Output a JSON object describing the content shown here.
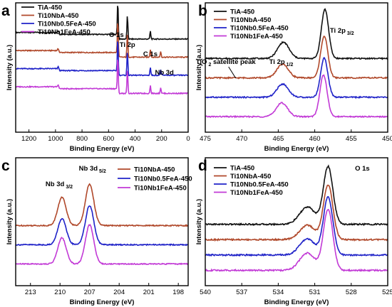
{
  "colors": {
    "TiA-450": "#111111",
    "Ti10NbA-450": "#b0482a",
    "Ti10Nb0.5FeA-450": "#1f22c8",
    "Ti10Nb1FeA-450": "#c23ad6"
  },
  "chart_data": [
    {
      "type": "line",
      "panel": "a",
      "xlabel": "Binding Energy (eV)",
      "ylabel": "Intensity (a.u.)",
      "xlim": [
        1300,
        0
      ],
      "x_reversed": true,
      "xticks": [
        1200,
        1000,
        800,
        600,
        400,
        200,
        0
      ],
      "legend_position": "top-left",
      "series": [
        {
          "name": "TiA-450",
          "offset": 3,
          "spikes": [
            [
              978,
              0.1
            ],
            [
              530,
              0.9
            ],
            [
              458,
              0.6
            ],
            [
              285,
              0.2
            ]
          ]
        },
        {
          "name": "Ti10NbA-450",
          "offset": 2,
          "spikes": [
            [
              978,
              0.1
            ],
            [
              530,
              0.9
            ],
            [
              458,
              0.6
            ],
            [
              285,
              0.2
            ],
            [
              207,
              0.15
            ]
          ]
        },
        {
          "name": "Ti10Nb0.5FeA-450",
          "offset": 1,
          "spikes": [
            [
              978,
              0.1
            ],
            [
              530,
              0.9
            ],
            [
              458,
              0.6
            ],
            [
              285,
              0.2
            ],
            [
              207,
              0.15
            ]
          ]
        },
        {
          "name": "Ti10Nb1FeA-450",
          "offset": 0,
          "spikes": [
            [
              978,
              0.1
            ],
            [
              530,
              0.9
            ],
            [
              458,
              0.6
            ],
            [
              285,
              0.2
            ],
            [
              207,
              0.15
            ]
          ]
        }
      ],
      "annotations": [
        {
          "text": "O 1s",
          "x": 530
        },
        {
          "text": "Ti 2p",
          "x": 458
        },
        {
          "text": "C 1s",
          "x": 285
        },
        {
          "text": "Nb 3d",
          "x": 207
        }
      ]
    },
    {
      "type": "line",
      "panel": "b",
      "xlabel": "Binding Energy (eV)",
      "ylabel": "Intensity (a.u.)",
      "xlim": [
        475,
        450
      ],
      "x_reversed": true,
      "xticks": [
        475,
        470,
        465,
        460,
        455,
        450
      ],
      "legend_position": "top-left",
      "series": [
        {
          "name": "TiA-450",
          "offset": 3,
          "peaks": [
            [
              458.6,
              1.0,
              0.7
            ],
            [
              464.3,
              0.33,
              1.1
            ]
          ]
        },
        {
          "name": "Ti10NbA-450",
          "offset": 2,
          "peaks": [
            [
              458.7,
              0.85,
              0.7
            ],
            [
              464.4,
              0.28,
              1.1
            ]
          ]
        },
        {
          "name": "Ti10Nb0.5FeA-450",
          "offset": 1,
          "peaks": [
            [
              458.7,
              0.8,
              0.7
            ],
            [
              464.4,
              0.27,
              1.1
            ]
          ]
        },
        {
          "name": "Ti10Nb1FeA-450",
          "offset": 0,
          "peaks": [
            [
              458.8,
              0.85,
              0.7
            ],
            [
              464.5,
              0.28,
              1.1
            ]
          ]
        }
      ],
      "annotations": [
        {
          "text": "Ti 2p",
          "sub": "3/2",
          "x": 458.7
        },
        {
          "text": "Ti 2p",
          "sub": "1/2",
          "x": 464.4
        },
        {
          "text": "TiO",
          "sub": "2",
          "text2": " satellite peak",
          "x": 472
        }
      ]
    },
    {
      "type": "line",
      "panel": "c",
      "xlabel": "Binding Energy (eV)",
      "ylabel": "Intensity (a.u.)",
      "xlim": [
        214.5,
        197
      ],
      "x_reversed": true,
      "xticks": [
        213,
        210,
        207,
        204,
        201,
        198
      ],
      "legend_position": "top-right",
      "series": [
        {
          "name": "Ti10NbA-450",
          "offset": 2,
          "peaks": [
            [
              209.8,
              0.65,
              0.6
            ],
            [
              207.0,
              0.95,
              0.6
            ]
          ]
        },
        {
          "name": "Ti10Nb0.5FeA-450",
          "offset": 1,
          "peaks": [
            [
              209.8,
              0.6,
              0.6
            ],
            [
              207.0,
              0.9,
              0.6
            ]
          ]
        },
        {
          "name": "Ti10Nb1FeA-450",
          "offset": 0,
          "peaks": [
            [
              209.8,
              0.6,
              0.6
            ],
            [
              207.0,
              0.9,
              0.6
            ]
          ]
        }
      ],
      "annotations": [
        {
          "text": "Nb 3d",
          "sub": "3/2",
          "x": 209.8
        },
        {
          "text": "Nb 3d",
          "sub": "5/2",
          "x": 207.0
        }
      ]
    },
    {
      "type": "line",
      "panel": "d",
      "xlabel": "Binding Energy (eV)",
      "ylabel": "Intensity (a.u.)",
      "xlim": [
        540,
        525
      ],
      "x_reversed": true,
      "xticks": [
        540,
        537,
        534,
        531,
        528,
        525
      ],
      "legend_position": "top-left",
      "series": [
        {
          "name": "TiA-450",
          "offset": 3,
          "peaks": [
            [
              529.9,
              1.0,
              0.55
            ],
            [
              531.6,
              0.3,
              0.9
            ]
          ]
        },
        {
          "name": "Ti10NbA-450",
          "offset": 2,
          "peaks": [
            [
              529.9,
              0.95,
              0.55
            ],
            [
              531.6,
              0.25,
              0.9
            ]
          ]
        },
        {
          "name": "Ti10Nb0.5FeA-450",
          "offset": 1,
          "peaks": [
            [
              529.9,
              1.0,
              0.55
            ],
            [
              531.6,
              0.28,
              0.9
            ]
          ]
        },
        {
          "name": "Ti10Nb1FeA-450",
          "offset": 0,
          "peaks": [
            [
              529.9,
              1.05,
              0.55
            ],
            [
              531.6,
              0.3,
              0.9
            ]
          ]
        }
      ],
      "annotations": [
        {
          "text": "O 1s",
          "x": 529.9
        }
      ]
    }
  ]
}
